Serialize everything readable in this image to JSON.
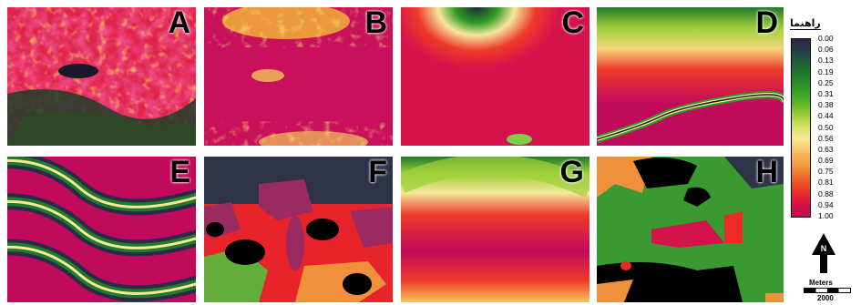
{
  "panels": [
    {
      "id": "A",
      "label": "A"
    },
    {
      "id": "B",
      "label": "B"
    },
    {
      "id": "C",
      "label": "C"
    },
    {
      "id": "D",
      "label": "D"
    },
    {
      "id": "E",
      "label": "E"
    },
    {
      "id": "F",
      "label": "F"
    },
    {
      "id": "G",
      "label": "G"
    },
    {
      "id": "H",
      "label": "H"
    }
  ],
  "legend": {
    "title": "راهنما",
    "ticks": [
      "0.00",
      "0.06",
      "0.13",
      "0.19",
      "0.25",
      "0.31",
      "0.38",
      "0.44",
      "0.50",
      "0.56",
      "0.63",
      "0.69",
      "0.75",
      "0.81",
      "0.88",
      "0.94",
      "1.00"
    ],
    "colors": {
      "low": "#2b2a4a",
      "mid": "#f6e79a",
      "high": "#c20a5c"
    }
  },
  "north_arrow": {
    "letter": "N"
  },
  "scale_bar": {
    "unit": "Meters",
    "value": "2000"
  }
}
